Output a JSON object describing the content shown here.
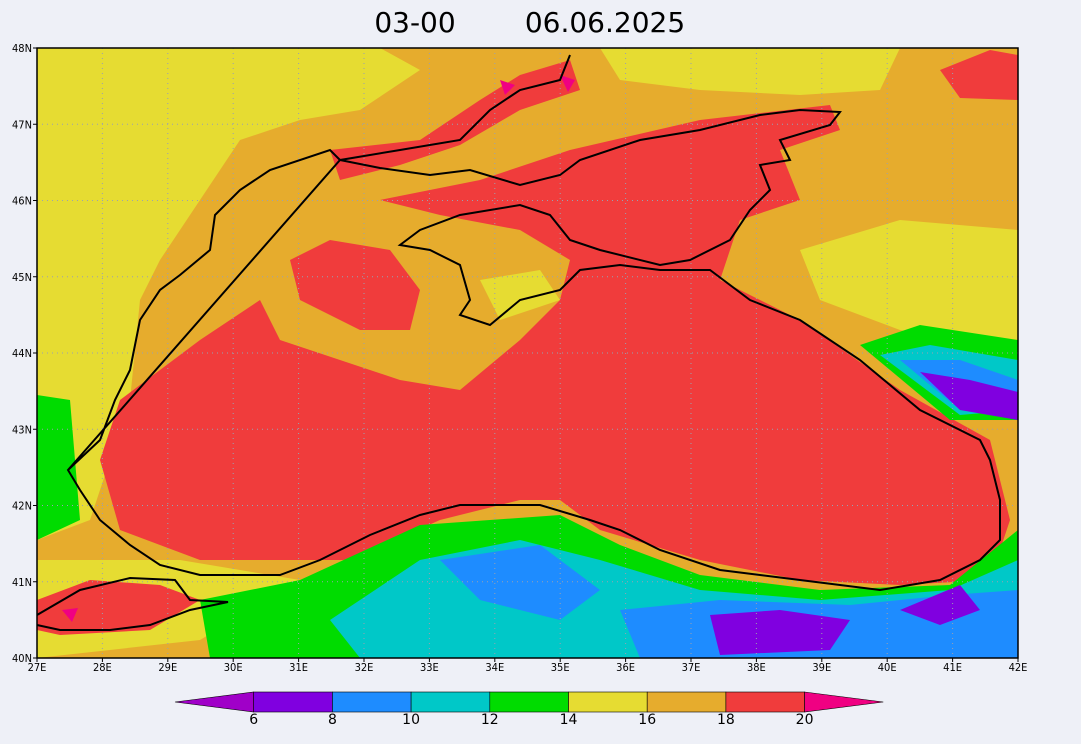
{
  "header": {
    "time": "03-00",
    "date": "06.06.2025"
  },
  "map": {
    "lon_labels": [
      "27E",
      "28E",
      "29E",
      "30E",
      "31E",
      "32E",
      "33E",
      "34E",
      "35E",
      "36E",
      "37E",
      "38E",
      "39E",
      "40E",
      "41E",
      "42E"
    ],
    "lat_labels": [
      "40N",
      "41N",
      "42N",
      "43N",
      "44N",
      "45N",
      "46N",
      "47N",
      "48N"
    ]
  },
  "colorbar": {
    "labels": [
      6,
      8,
      10,
      12,
      14,
      16,
      18,
      20
    ],
    "colors": [
      "#a000c8",
      "#8000e0",
      "#1e8cff",
      "#00c8c8",
      "#00dc00",
      "#e6dc32",
      "#e6ac2d",
      "#f03c3c",
      "#f00082"
    ]
  }
}
